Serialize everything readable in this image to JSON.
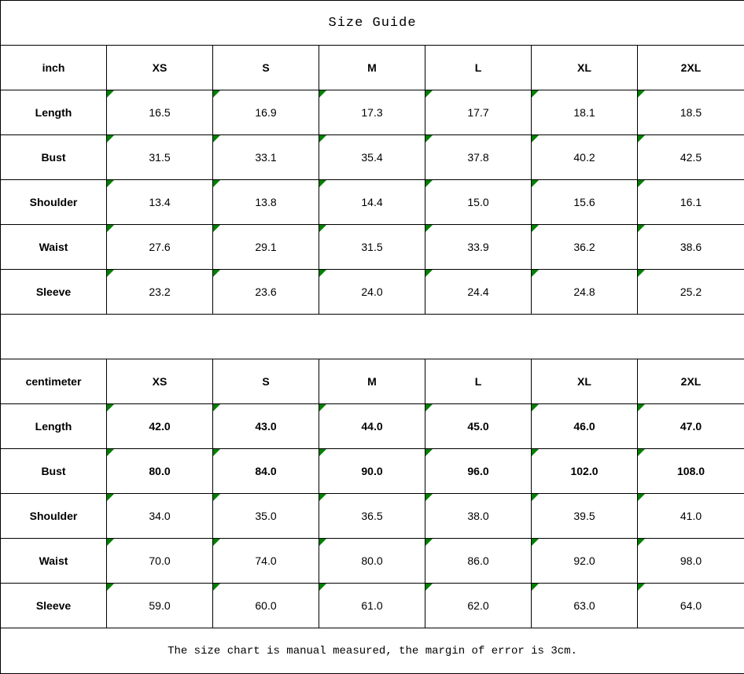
{
  "title": "Size Guide",
  "footer_note": "The size chart is manual measured, the margin of error is 3cm.",
  "colors": {
    "background": "#ffffff",
    "border": "#000000",
    "text": "#000000",
    "cell_marker_green": "#008000"
  },
  "chart_data": [
    {
      "type": "table",
      "unit_label": "inch",
      "size_columns": [
        "XS",
        "S",
        "M",
        "L",
        "XL",
        "2XL"
      ],
      "rows": [
        {
          "label": "Length",
          "bold": false,
          "values": [
            "16.5",
            "16.9",
            "17.3",
            "17.7",
            "18.1",
            "18.5"
          ]
        },
        {
          "label": "Bust",
          "bold": false,
          "values": [
            "31.5",
            "33.1",
            "35.4",
            "37.8",
            "40.2",
            "42.5"
          ]
        },
        {
          "label": "Shoulder",
          "bold": false,
          "values": [
            "13.4",
            "13.8",
            "14.4",
            "15.0",
            "15.6",
            "16.1"
          ]
        },
        {
          "label": "Waist",
          "bold": false,
          "values": [
            "27.6",
            "29.1",
            "31.5",
            "33.9",
            "36.2",
            "38.6"
          ]
        },
        {
          "label": "Sleeve",
          "bold": false,
          "values": [
            "23.2",
            "23.6",
            "24.0",
            "24.4",
            "24.8",
            "25.2"
          ]
        }
      ]
    },
    {
      "type": "table",
      "unit_label": "centimeter",
      "size_columns": [
        "XS",
        "S",
        "M",
        "L",
        "XL",
        "2XL"
      ],
      "rows": [
        {
          "label": "Length",
          "bold": true,
          "values": [
            "42.0",
            "43.0",
            "44.0",
            "45.0",
            "46.0",
            "47.0"
          ]
        },
        {
          "label": "Bust",
          "bold": true,
          "values": [
            "80.0",
            "84.0",
            "90.0",
            "96.0",
            "102.0",
            "108.0"
          ]
        },
        {
          "label": "Shoulder",
          "bold": false,
          "values": [
            "34.0",
            "35.0",
            "36.5",
            "38.0",
            "39.5",
            "41.0"
          ]
        },
        {
          "label": "Waist",
          "bold": false,
          "values": [
            "70.0",
            "74.0",
            "80.0",
            "86.0",
            "92.0",
            "98.0"
          ]
        },
        {
          "label": "Sleeve",
          "bold": false,
          "values": [
            "59.0",
            "60.0",
            "61.0",
            "62.0",
            "63.0",
            "64.0"
          ]
        }
      ]
    }
  ]
}
